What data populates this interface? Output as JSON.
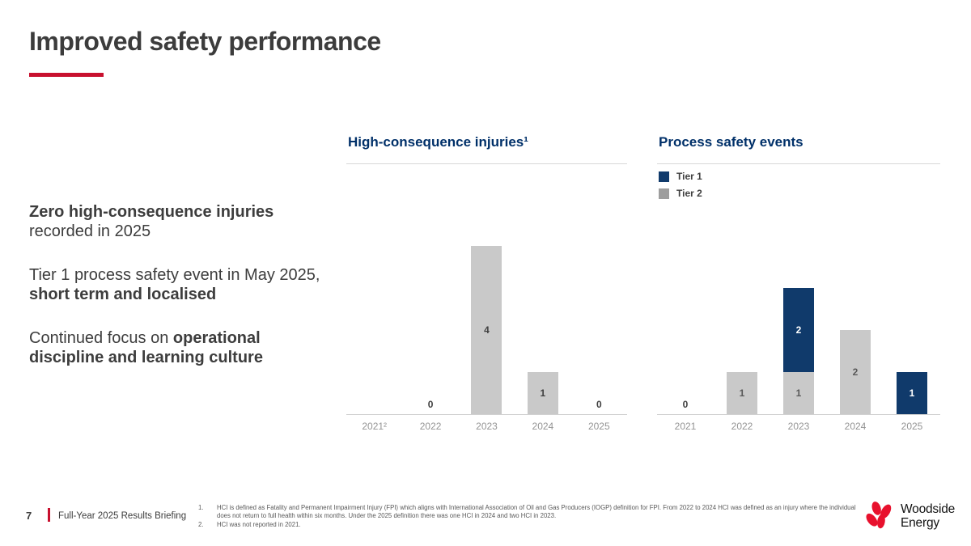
{
  "header": {
    "title": "Improved safety performance"
  },
  "accent_color": "#c8102e",
  "messages": [
    {
      "lines": [
        [
          {
            "t": "Zero high-consequence injuries",
            "b": 1
          }
        ],
        [
          {
            "t": "recorded in 2025",
            "b": 0
          }
        ]
      ]
    },
    {
      "lines": [
        [
          {
            "t": "Tier 1 process safety event in May 2025,",
            "b": 0
          }
        ],
        [
          {
            "t": "short term and localised",
            "b": 1
          }
        ]
      ]
    },
    {
      "lines": [
        [
          {
            "t": "Continued focus on ",
            "b": 0
          },
          {
            "t": "operational",
            "b": 1
          }
        ],
        [
          {
            "t": "discipline and learning culture",
            "b": 1
          }
        ]
      ]
    }
  ],
  "chart_data": [
    {
      "type": "bar",
      "title": "High-consequence injuries¹",
      "categories": [
        "2021²",
        "2022",
        "2023",
        "2024",
        "2025"
      ],
      "series": [
        {
          "name": "High-consequence injuries",
          "color": "#c9c9c9",
          "label_color": "#3f3f3f",
          "values": [
            null,
            0,
            4,
            1,
            0
          ]
        }
      ],
      "ylim": [
        0,
        4
      ],
      "grid": false,
      "legend": false,
      "tick_color": "#949494"
    },
    {
      "type": "stacked-bar",
      "title": "Process safety events",
      "categories": [
        "2021",
        "2022",
        "2023",
        "2024",
        "2025"
      ],
      "series": [
        {
          "name": "Tier 1",
          "color": "#103a6b",
          "legend_color": "#103a6b",
          "label_color": "#ffffff",
          "values": [
            0,
            0,
            2,
            0,
            1
          ]
        },
        {
          "name": "Tier 2",
          "color": "#c9c9c9",
          "legend_color": "#9d9d9d",
          "label_color": "#595959",
          "values": [
            0,
            1,
            1,
            2,
            0
          ]
        }
      ],
      "stack_order_bottom_to_top": [
        "Tier 2",
        "Tier 1"
      ],
      "ylim": [
        0,
        4
      ],
      "grid": false,
      "legend": true,
      "legend_position": "top-left",
      "tick_color": "#949494"
    }
  ],
  "footnotes": [
    {
      "num": "1.",
      "text": "HCI is defined as Fatality and Permanent Impairment Injury (FPI) which aligns with International Association of Oil and Gas Producers (IOGP) definition for FPI. From 2022 to 2024 HCI was defined as an injury where the individual does not return to full health within six months. Under the 2025 definition there was one HCI in 2024 and two HCI in 2023."
    },
    {
      "num": "2.",
      "text": "HCI was not reported in 2021."
    }
  ],
  "footer": {
    "page_number": "7",
    "label": "Full-Year 2025 Results Briefing"
  },
  "logo": {
    "line1": "Woodside",
    "line2": "Energy",
    "mark_color": "#e8112d"
  }
}
